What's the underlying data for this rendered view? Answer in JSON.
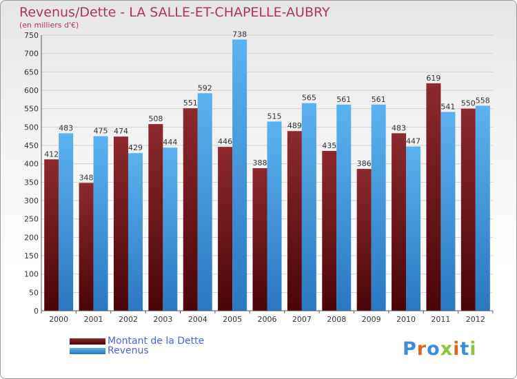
{
  "chart_data": {
    "type": "bar",
    "title": "Revenus/Dette - LA SALLE-ET-CHAPELLE-AUBRY",
    "subtitle": "(en milliers d'€)",
    "xlabel": "",
    "ylabel": "",
    "ylim": [
      0,
      750
    ],
    "yticks": [
      0,
      50,
      100,
      150,
      200,
      250,
      300,
      350,
      400,
      450,
      500,
      550,
      600,
      650,
      700,
      750
    ],
    "grid": true,
    "legend_position": "bottom-left",
    "categories": [
      "2000",
      "2001",
      "2002",
      "2003",
      "2004",
      "2005",
      "2006",
      "2007",
      "2008",
      "2009",
      "2010",
      "2011",
      "2012"
    ],
    "series": [
      {
        "name": "Montant de la Dette",
        "color": "#7a1a1e",
        "values": [
          412,
          348,
          474,
          508,
          551,
          446,
          388,
          489,
          435,
          386,
          483,
          619,
          550
        ]
      },
      {
        "name": "Revenus",
        "color": "#4aa3e3",
        "values": [
          483,
          475,
          429,
          444,
          592,
          738,
          515,
          565,
          561,
          561,
          447,
          541,
          558
        ]
      }
    ]
  },
  "logo": {
    "text": "Proxiti"
  }
}
